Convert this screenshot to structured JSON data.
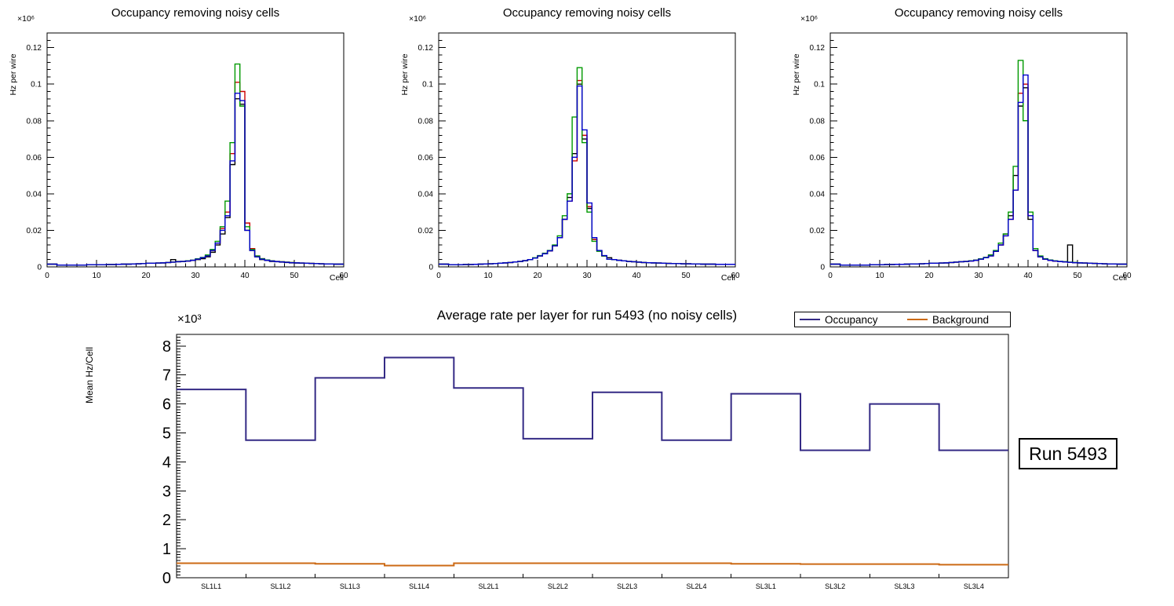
{
  "chart_data": [
    {
      "type": "bar",
      "title": "Occupancy removing noisy cells",
      "ylabel": "Hz per wire",
      "xlabel": "Cell",
      "exponent": "×10⁶",
      "xlim": [
        0,
        60
      ],
      "ylim": [
        0,
        0.128
      ],
      "xticks": [
        0,
        10,
        20,
        30,
        40,
        50,
        60
      ],
      "xminor": 2,
      "yticks": [
        0,
        0.02,
        0.04,
        0.06,
        0.08,
        0.1,
        0.12
      ],
      "ytick_labels": [
        "0",
        "0.02",
        "0.04",
        "0.06",
        "0.08",
        "0.1",
        "0.12"
      ],
      "yminor": 0.004,
      "series": [
        {
          "name": "hist-black",
          "color": "#000000",
          "values": [
            0.0015,
            0.0015,
            0.001,
            0.001,
            0.001,
            0.001,
            0.001,
            0.001,
            0.0012,
            0.0012,
            0.0012,
            0.0012,
            0.0013,
            0.0013,
            0.0014,
            0.0015,
            0.0015,
            0.0016,
            0.0017,
            0.0018,
            0.002,
            0.002,
            0.0021,
            0.0022,
            0.0024,
            0.004,
            0.003,
            0.003,
            0.0032,
            0.0035,
            0.004,
            0.0045,
            0.0055,
            0.008,
            0.012,
            0.018,
            0.027,
            0.056,
            0.092,
            0.089,
            0.02,
            0.009,
            0.0055,
            0.004,
            0.0035,
            0.003,
            0.0028,
            0.0026,
            0.0024,
            0.0022,
            0.0021,
            0.002,
            0.002,
            0.0019,
            0.0018,
            0.0017,
            0.0016,
            0.0016,
            0.0015,
            0.0015
          ]
        },
        {
          "name": "hist-red",
          "color": "#cc0000",
          "values": [
            0.0015,
            0.0015,
            0.001,
            0.001,
            0.001,
            0.001,
            0.001,
            0.001,
            0.0012,
            0.0012,
            0.0012,
            0.0012,
            0.0013,
            0.0013,
            0.0014,
            0.0015,
            0.0015,
            0.0016,
            0.0017,
            0.0018,
            0.002,
            0.002,
            0.0021,
            0.0022,
            0.0024,
            0.0026,
            0.0028,
            0.003,
            0.0032,
            0.0036,
            0.0042,
            0.005,
            0.006,
            0.009,
            0.013,
            0.021,
            0.03,
            0.062,
            0.101,
            0.096,
            0.024,
            0.01,
            0.006,
            0.0045,
            0.0038,
            0.0033,
            0.003,
            0.0028,
            0.0026,
            0.0024,
            0.0022,
            0.0021,
            0.002,
            0.0019,
            0.0018,
            0.0017,
            0.0016,
            0.0016,
            0.0015,
            0.0015
          ]
        },
        {
          "name": "hist-green",
          "color": "#009900",
          "values": [
            0.0015,
            0.0015,
            0.001,
            0.001,
            0.001,
            0.001,
            0.001,
            0.001,
            0.0012,
            0.0012,
            0.0012,
            0.0012,
            0.0013,
            0.0013,
            0.0014,
            0.0015,
            0.0015,
            0.0016,
            0.0017,
            0.0018,
            0.002,
            0.002,
            0.0021,
            0.0022,
            0.0024,
            0.0026,
            0.0028,
            0.003,
            0.0033,
            0.0037,
            0.0044,
            0.0052,
            0.0065,
            0.0095,
            0.014,
            0.022,
            0.036,
            0.068,
            0.111,
            0.088,
            0.022,
            0.0095,
            0.006,
            0.0045,
            0.0038,
            0.0033,
            0.003,
            0.0028,
            0.0026,
            0.0024,
            0.0022,
            0.0021,
            0.002,
            0.0019,
            0.0018,
            0.0017,
            0.0016,
            0.0016,
            0.0015,
            0.0015
          ]
        },
        {
          "name": "hist-blue",
          "color": "#0000cc",
          "values": [
            0.0015,
            0.0015,
            0.001,
            0.001,
            0.001,
            0.001,
            0.001,
            0.001,
            0.0012,
            0.0012,
            0.0012,
            0.0012,
            0.0013,
            0.0013,
            0.0014,
            0.0015,
            0.0015,
            0.0016,
            0.0017,
            0.0018,
            0.002,
            0.002,
            0.0021,
            0.0022,
            0.0024,
            0.0026,
            0.0028,
            0.003,
            0.0032,
            0.0036,
            0.0042,
            0.005,
            0.006,
            0.009,
            0.013,
            0.02,
            0.028,
            0.058,
            0.095,
            0.091,
            0.02,
            0.009,
            0.0055,
            0.0042,
            0.0036,
            0.0032,
            0.0029,
            0.0027,
            0.0025,
            0.0023,
            0.0022,
            0.0021,
            0.002,
            0.0019,
            0.0018,
            0.0017,
            0.0016,
            0.0016,
            0.0015,
            0.0015
          ]
        }
      ]
    },
    {
      "type": "bar",
      "title": "Occupancy removing noisy cells",
      "ylabel": "Hz per wire",
      "xlabel": "Cell",
      "exponent": "×10⁶",
      "xlim": [
        0,
        60
      ],
      "ylim": [
        0,
        0.128
      ],
      "xticks": [
        0,
        10,
        20,
        30,
        40,
        50,
        60
      ],
      "xminor": 2,
      "yticks": [
        0,
        0.02,
        0.04,
        0.06,
        0.08,
        0.1,
        0.12
      ],
      "ytick_labels": [
        "0",
        "0.02",
        "0.04",
        "0.06",
        "0.08",
        "0.1",
        "0.12"
      ],
      "yminor": 0.004,
      "series": [
        {
          "name": "hist-black",
          "color": "#000000",
          "values": [
            0.0015,
            0.0015,
            0.0012,
            0.0012,
            0.0012,
            0.0013,
            0.0013,
            0.0014,
            0.0015,
            0.0016,
            0.0017,
            0.0018,
            0.002,
            0.0022,
            0.0024,
            0.0027,
            0.003,
            0.0034,
            0.004,
            0.0048,
            0.006,
            0.0072,
            0.0088,
            0.0115,
            0.016,
            0.026,
            0.038,
            0.062,
            0.1,
            0.07,
            0.032,
            0.015,
            0.0088,
            0.006,
            0.005,
            0.004,
            0.0036,
            0.0033,
            0.003,
            0.0028,
            0.0026,
            0.0024,
            0.0023,
            0.0022,
            0.0021,
            0.002,
            0.0019,
            0.0018,
            0.0018,
            0.0017,
            0.0017,
            0.0016,
            0.0016,
            0.0015,
            0.0015,
            0.0015,
            0.0014,
            0.0014,
            0.0014,
            0.0014
          ]
        },
        {
          "name": "hist-red",
          "color": "#cc0000",
          "values": [
            0.0015,
            0.0015,
            0.0012,
            0.0012,
            0.0012,
            0.0013,
            0.0013,
            0.0014,
            0.0015,
            0.0016,
            0.0017,
            0.0018,
            0.002,
            0.0022,
            0.0024,
            0.0027,
            0.003,
            0.0034,
            0.004,
            0.0048,
            0.006,
            0.0072,
            0.0088,
            0.0115,
            0.016,
            0.026,
            0.036,
            0.058,
            0.102,
            0.072,
            0.033,
            0.015,
            0.0088,
            0.006,
            0.0042,
            0.004,
            0.0036,
            0.0033,
            0.003,
            0.0028,
            0.0026,
            0.0024,
            0.0023,
            0.0022,
            0.0021,
            0.002,
            0.0019,
            0.0018,
            0.0018,
            0.0017,
            0.0017,
            0.0016,
            0.0016,
            0.0015,
            0.0015,
            0.0015,
            0.0014,
            0.0014,
            0.0014,
            0.0014
          ]
        },
        {
          "name": "hist-green",
          "color": "#009900",
          "values": [
            0.0015,
            0.0015,
            0.0012,
            0.0012,
            0.0012,
            0.0013,
            0.0013,
            0.0014,
            0.0015,
            0.0016,
            0.0017,
            0.0018,
            0.002,
            0.0022,
            0.0024,
            0.0027,
            0.003,
            0.0034,
            0.004,
            0.005,
            0.0062,
            0.0075,
            0.009,
            0.012,
            0.017,
            0.028,
            0.04,
            0.082,
            0.109,
            0.068,
            0.03,
            0.014,
            0.0085,
            0.006,
            0.0042,
            0.004,
            0.0036,
            0.0033,
            0.003,
            0.0028,
            0.0026,
            0.0024,
            0.0023,
            0.0022,
            0.0021,
            0.002,
            0.0019,
            0.0018,
            0.0018,
            0.0017,
            0.0017,
            0.0016,
            0.0016,
            0.0015,
            0.0015,
            0.0015,
            0.0014,
            0.0014,
            0.0014,
            0.0014
          ]
        },
        {
          "name": "hist-blue",
          "color": "#0000cc",
          "values": [
            0.0015,
            0.0015,
            0.0012,
            0.0012,
            0.0012,
            0.0013,
            0.0013,
            0.0014,
            0.0015,
            0.0016,
            0.0017,
            0.0018,
            0.002,
            0.0022,
            0.0024,
            0.0027,
            0.003,
            0.0034,
            0.004,
            0.0048,
            0.006,
            0.0072,
            0.0088,
            0.0115,
            0.016,
            0.026,
            0.036,
            0.06,
            0.099,
            0.075,
            0.035,
            0.016,
            0.009,
            0.0062,
            0.0042,
            0.004,
            0.0036,
            0.0033,
            0.003,
            0.0028,
            0.0026,
            0.0024,
            0.0023,
            0.0022,
            0.0021,
            0.002,
            0.0019,
            0.0018,
            0.0018,
            0.0017,
            0.0017,
            0.0016,
            0.0016,
            0.0015,
            0.0015,
            0.0015,
            0.0014,
            0.0014,
            0.0014,
            0.0014
          ]
        }
      ]
    },
    {
      "type": "bar",
      "title": "Occupancy removing noisy cells",
      "ylabel": "Hz per wire",
      "xlabel": "Cell",
      "exponent": "×10⁶",
      "xlim": [
        0,
        60
      ],
      "ylim": [
        0,
        0.128
      ],
      "xticks": [
        0,
        10,
        20,
        30,
        40,
        50,
        60
      ],
      "xminor": 2,
      "yticks": [
        0,
        0.02,
        0.04,
        0.06,
        0.08,
        0.1,
        0.12
      ],
      "ytick_labels": [
        "0",
        "0.02",
        "0.04",
        "0.06",
        "0.08",
        "0.1",
        "0.12"
      ],
      "yminor": 0.004,
      "series": [
        {
          "name": "hist-black",
          "color": "#000000",
          "values": [
            0.0015,
            0.0015,
            0.001,
            0.001,
            0.001,
            0.001,
            0.001,
            0.001,
            0.0012,
            0.0012,
            0.0012,
            0.0013,
            0.0013,
            0.0014,
            0.0014,
            0.0015,
            0.0016,
            0.0016,
            0.0017,
            0.0018,
            0.002,
            0.002,
            0.0021,
            0.0022,
            0.0024,
            0.0026,
            0.0028,
            0.003,
            0.0033,
            0.0037,
            0.0044,
            0.0052,
            0.0065,
            0.0085,
            0.012,
            0.018,
            0.028,
            0.05,
            0.088,
            0.098,
            0.026,
            0.009,
            0.0055,
            0.0042,
            0.0036,
            0.0032,
            0.003,
            0.0028,
            0.012,
            0.0024,
            0.0022,
            0.0021,
            0.002,
            0.0019,
            0.0018,
            0.0017,
            0.0016,
            0.0016,
            0.0015,
            0.0015
          ]
        },
        {
          "name": "hist-red",
          "color": "#cc0000",
          "values": [
            0.0015,
            0.0015,
            0.001,
            0.001,
            0.001,
            0.001,
            0.001,
            0.001,
            0.0012,
            0.0012,
            0.0012,
            0.0013,
            0.0013,
            0.0014,
            0.0014,
            0.0015,
            0.0016,
            0.0016,
            0.0017,
            0.0018,
            0.002,
            0.002,
            0.0021,
            0.0022,
            0.0024,
            0.0026,
            0.0028,
            0.003,
            0.0032,
            0.0036,
            0.0042,
            0.005,
            0.006,
            0.0085,
            0.012,
            0.017,
            0.026,
            0.042,
            0.095,
            0.1,
            0.028,
            0.009,
            0.0055,
            0.0042,
            0.0036,
            0.0032,
            0.0029,
            0.0027,
            0.0025,
            0.0023,
            0.0022,
            0.0021,
            0.002,
            0.0019,
            0.0018,
            0.0017,
            0.0016,
            0.0016,
            0.0015,
            0.0015
          ]
        },
        {
          "name": "hist-green",
          "color": "#009900",
          "values": [
            0.0015,
            0.0015,
            0.001,
            0.001,
            0.001,
            0.001,
            0.001,
            0.001,
            0.0012,
            0.0012,
            0.0012,
            0.0013,
            0.0013,
            0.0014,
            0.0014,
            0.0015,
            0.0016,
            0.0016,
            0.0017,
            0.0018,
            0.002,
            0.002,
            0.0021,
            0.0022,
            0.0024,
            0.0026,
            0.0028,
            0.003,
            0.0033,
            0.0037,
            0.0044,
            0.0052,
            0.0065,
            0.009,
            0.013,
            0.018,
            0.03,
            0.055,
            0.113,
            0.08,
            0.03,
            0.01,
            0.006,
            0.0045,
            0.0038,
            0.0033,
            0.003,
            0.0028,
            0.0026,
            0.0024,
            0.0022,
            0.0021,
            0.002,
            0.0019,
            0.0018,
            0.0017,
            0.0016,
            0.0016,
            0.0015,
            0.0015
          ]
        },
        {
          "name": "hist-blue",
          "color": "#0000cc",
          "values": [
            0.0015,
            0.0015,
            0.001,
            0.001,
            0.001,
            0.001,
            0.001,
            0.001,
            0.0012,
            0.0012,
            0.0012,
            0.0013,
            0.0013,
            0.0014,
            0.0014,
            0.0015,
            0.0016,
            0.0016,
            0.0017,
            0.0018,
            0.002,
            0.002,
            0.0021,
            0.0022,
            0.0024,
            0.0026,
            0.0028,
            0.003,
            0.0032,
            0.0036,
            0.0042,
            0.005,
            0.006,
            0.0085,
            0.012,
            0.017,
            0.026,
            0.042,
            0.09,
            0.105,
            0.028,
            0.009,
            0.0055,
            0.0042,
            0.0036,
            0.0032,
            0.0029,
            0.0027,
            0.0025,
            0.0023,
            0.0022,
            0.0021,
            0.002,
            0.0019,
            0.0018,
            0.0017,
            0.0016,
            0.0016,
            0.0015,
            0.0015
          ]
        }
      ]
    },
    {
      "type": "line",
      "title": "Average rate per layer for run 5493 (no noisy cells)",
      "ylabel": "Mean Hz/Cell",
      "xlabel": "",
      "exponent": "×10³",
      "annotation": "Run 5493",
      "legend_position": "top-right",
      "categories": [
        "SL1L1",
        "SL1L2",
        "SL1L3",
        "SL1L4",
        "SL2L1",
        "SL2L2",
        "SL2L3",
        "SL2L4",
        "SL3L1",
        "SL3L2",
        "SL3L3",
        "SL3L4"
      ],
      "ylim": [
        0,
        8.4
      ],
      "yticks": [
        0,
        1,
        2,
        3,
        4,
        5,
        6,
        7,
        8
      ],
      "ytick_labels": [
        "0",
        "1",
        "2",
        "3",
        "4",
        "5",
        "6",
        "7",
        "8"
      ],
      "yminor": 0.1,
      "series": [
        {
          "name": "Occupancy",
          "color": "#342a85",
          "values": [
            6.5,
            4.75,
            6.9,
            7.6,
            6.55,
            4.8,
            6.4,
            4.75,
            6.35,
            4.4,
            6.0,
            4.4
          ]
        },
        {
          "name": "Background",
          "color": "#cc6a15",
          "values": [
            0.5,
            0.5,
            0.48,
            0.42,
            0.5,
            0.5,
            0.5,
            0.5,
            0.48,
            0.47,
            0.47,
            0.45
          ]
        }
      ]
    }
  ]
}
